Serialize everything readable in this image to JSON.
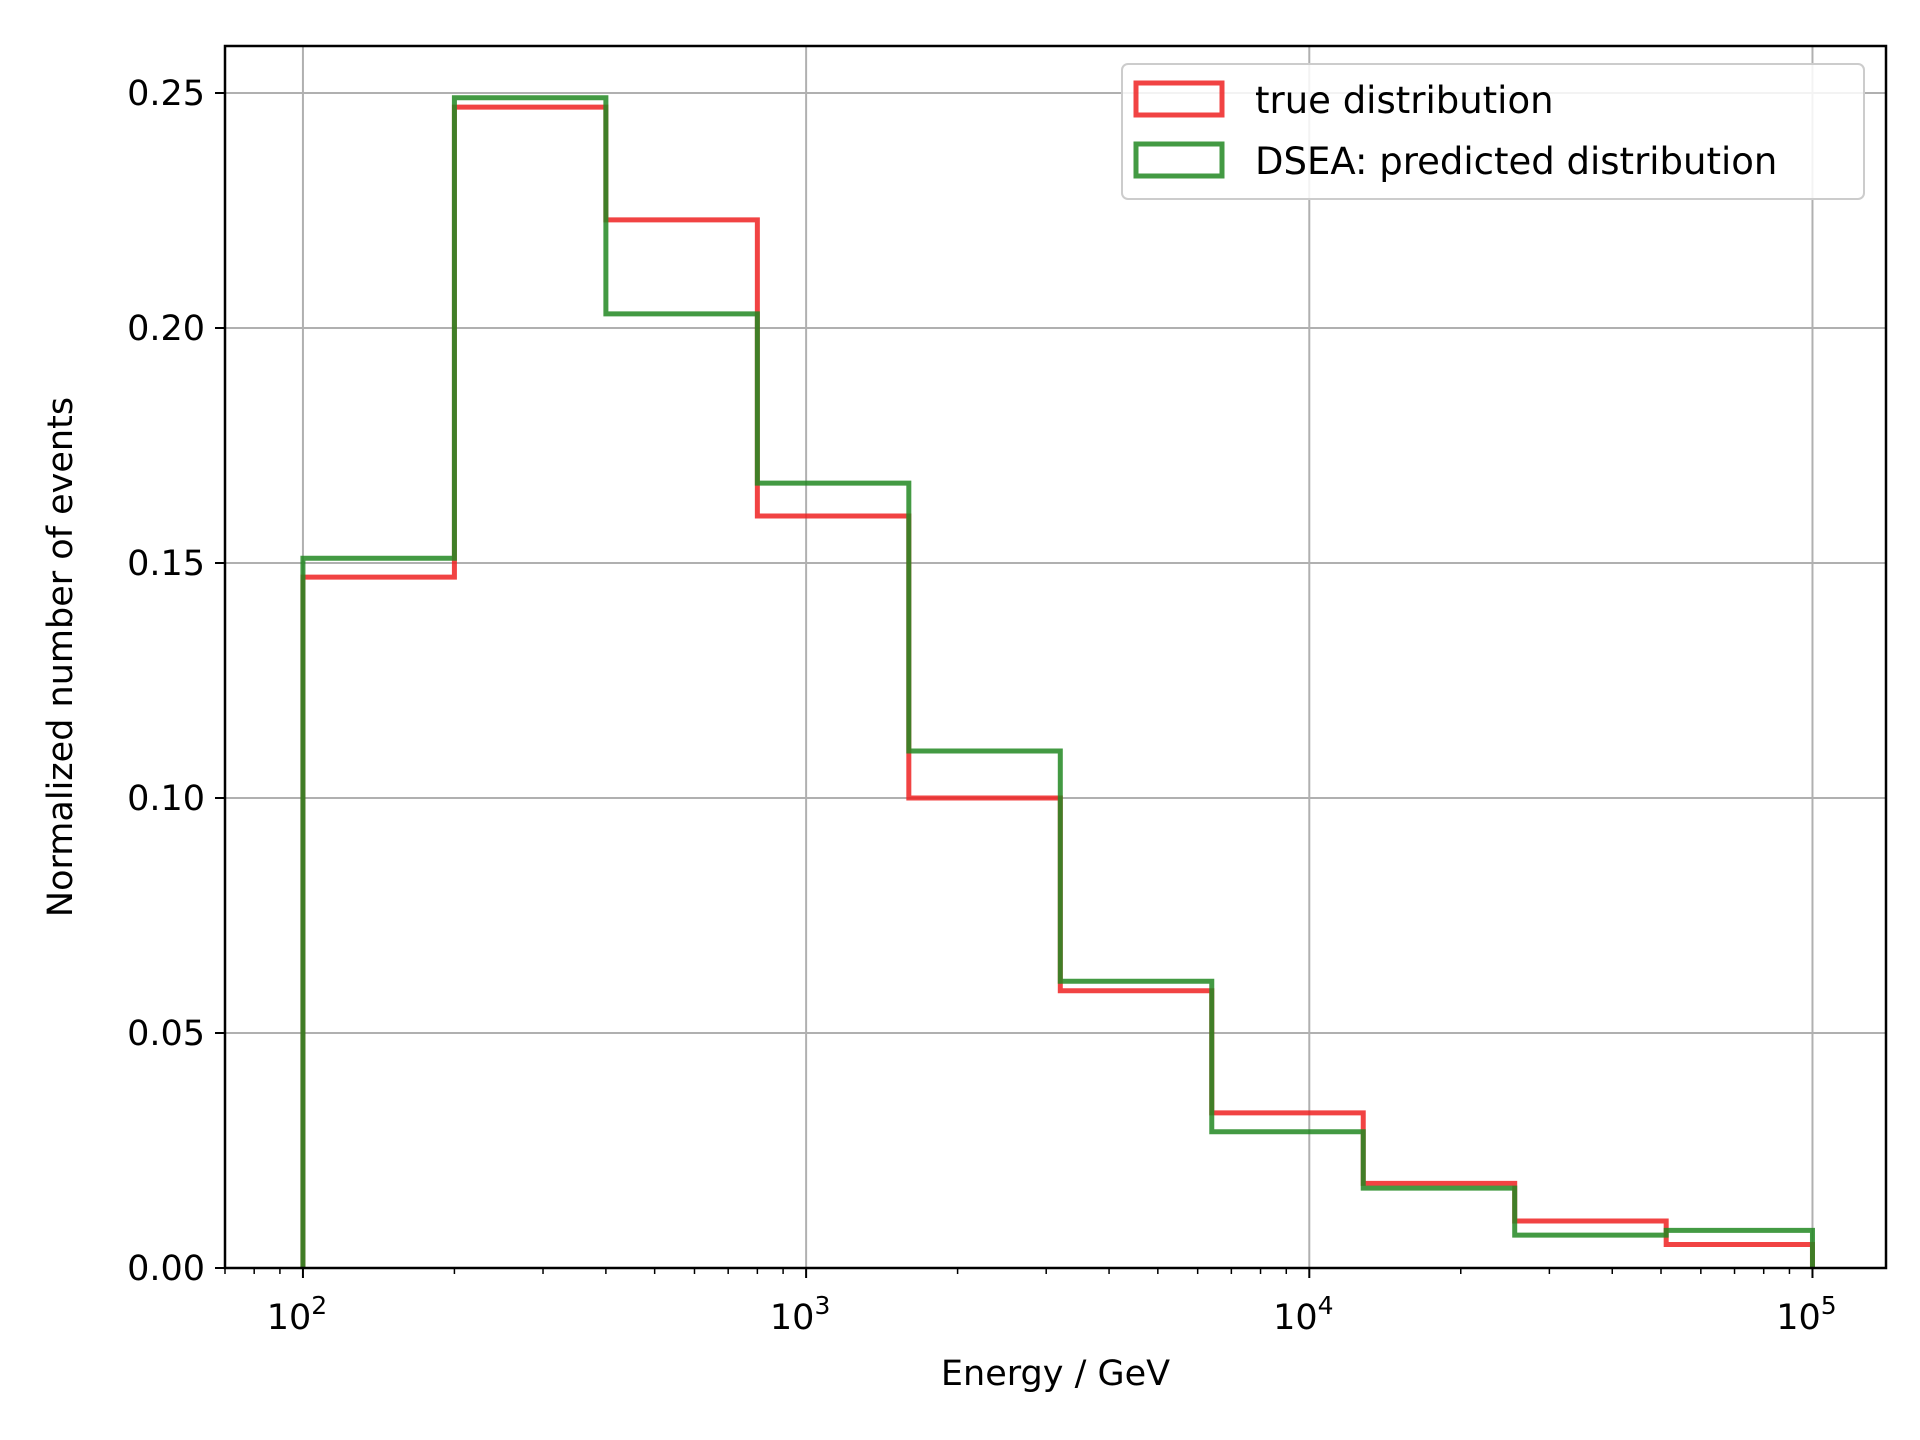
{
  "chart_data": {
    "type": "histogram",
    "xlabel": "Energy / GeV",
    "ylabel": "Normalized number of events",
    "xscale": "log",
    "xlim": [
      70,
      140000
    ],
    "ylim": [
      0,
      0.26
    ],
    "grid": true,
    "legend_position": "top-right",
    "x_ticks": [
      {
        "value": 100,
        "base": "10",
        "exp": "2"
      },
      {
        "value": 1000,
        "base": "10",
        "exp": "3"
      },
      {
        "value": 10000,
        "base": "10",
        "exp": "4"
      },
      {
        "value": 100000,
        "base": "10",
        "exp": "5"
      }
    ],
    "y_ticks": [
      {
        "value": 0.0,
        "label": "0.00"
      },
      {
        "value": 0.05,
        "label": "0.05"
      },
      {
        "value": 0.1,
        "label": "0.10"
      },
      {
        "value": 0.15,
        "label": "0.15"
      },
      {
        "value": 0.2,
        "label": "0.20"
      },
      {
        "value": 0.25,
        "label": "0.25"
      }
    ],
    "bin_edges": [
      100,
      200,
      400,
      800,
      1600,
      3200,
      6400,
      12800,
      25600,
      51200,
      100000
    ],
    "series": [
      {
        "name": "true distribution",
        "color": "#ee2222",
        "values": [
          0.147,
          0.247,
          0.223,
          0.16,
          0.1,
          0.059,
          0.033,
          0.018,
          0.01,
          0.005
        ]
      },
      {
        "name": "DSEA: predicted distribution",
        "color": "#228822",
        "values": [
          0.151,
          0.249,
          0.203,
          0.167,
          0.11,
          0.061,
          0.029,
          0.017,
          0.007,
          0.008
        ]
      }
    ]
  }
}
